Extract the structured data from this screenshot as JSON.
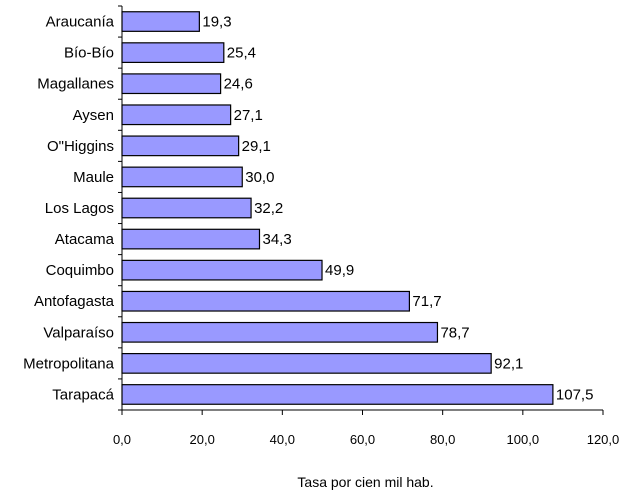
{
  "chart_data": {
    "type": "bar",
    "orientation": "horizontal",
    "categories": [
      "Araucanía",
      "Bío-Bío",
      "Magallanes",
      "Aysen",
      "O\"Higgins",
      "Maule",
      "Los Lagos",
      "Atacama",
      "Coquimbo",
      "Antofagasta",
      "Valparaíso",
      "Metropolitana",
      "Tarapacá"
    ],
    "values": [
      19.3,
      25.4,
      24.6,
      27.1,
      29.1,
      30.0,
      32.2,
      34.3,
      49.9,
      71.7,
      78.7,
      92.1,
      107.5
    ],
    "value_labels": [
      "19,3",
      "25,4",
      "24,6",
      "27,1",
      "29,1",
      "30,0",
      "32,2",
      "34,3",
      "49,9",
      "71,7",
      "78,7",
      "92,1",
      "107,5"
    ],
    "xlim": [
      0,
      120
    ],
    "x_ticks": [
      0,
      20,
      40,
      60,
      80,
      100,
      120
    ],
    "x_tick_labels": [
      "0,0",
      "20,0",
      "40,0",
      "60,0",
      "80,0",
      "100,0",
      "120,0"
    ],
    "xlabel": "Tasa por cien mil hab.",
    "title": "",
    "ylabel": "",
    "grid": false,
    "legend": "none",
    "bar_color": "#9999ff",
    "bar_border_color": "#000000"
  }
}
